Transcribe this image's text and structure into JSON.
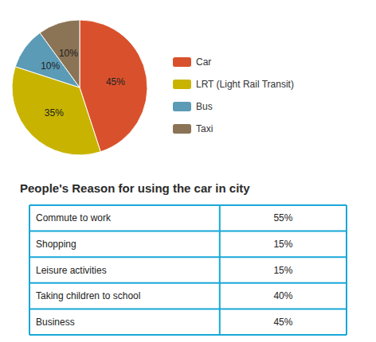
{
  "chart_data": [
    {
      "type": "pie",
      "categories": [
        "Car",
        "LRT (Light Rail Transit)",
        "Bus",
        "Taxi"
      ],
      "values": [
        45,
        35,
        10,
        10
      ],
      "value_labels": [
        "45%",
        "35%",
        "10%",
        "10%"
      ],
      "colors": [
        "#d9512c",
        "#c8b400",
        "#5b9bb5",
        "#8b7355"
      ],
      "data_labels": true,
      "legend": "right"
    },
    {
      "type": "table",
      "title": "People's Reason for using the car in city",
      "categories": [
        "Commute to work",
        "Shopping",
        "Leisure activities",
        "Taking children to school",
        "Business"
      ],
      "values": [
        55,
        15,
        15,
        40,
        45
      ],
      "value_labels": [
        "55%",
        "15%",
        "15%",
        "40%",
        "45%"
      ],
      "color": "#18a8d8"
    }
  ]
}
